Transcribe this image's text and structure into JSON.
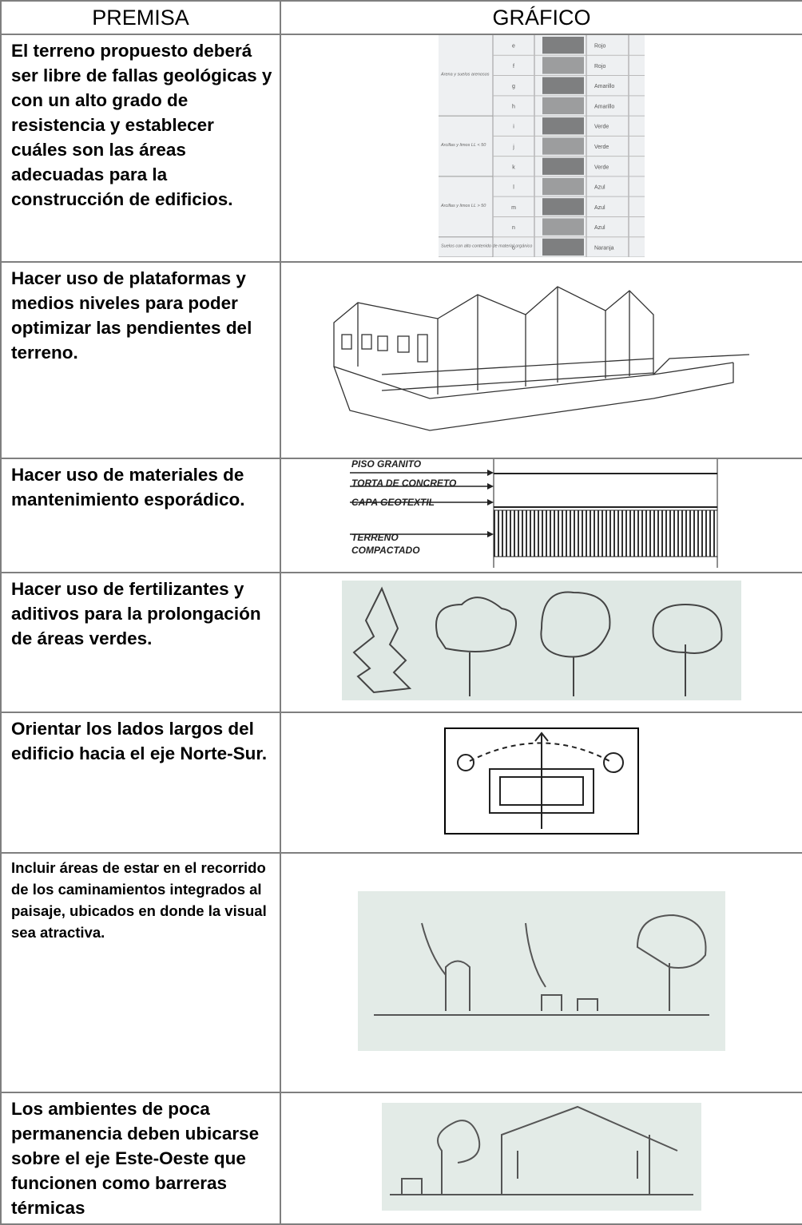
{
  "header": {
    "premisa": "PREMISA",
    "grafico": "GRÁFICO"
  },
  "rows": [
    {
      "premisa": "El terreno propuesto deberá ser libre de fallas geológicas y con un alto grado de resistencia y establecer cuáles son las áreas adecuadas para la construcción de edificios."
    },
    {
      "premisa": "Hacer uso de plataformas y medios niveles para poder optimizar las pendientes del terreno."
    },
    {
      "premisa": "Hacer uso de materiales de mantenimiento esporádico."
    },
    {
      "premisa": "Hacer uso de fertilizantes y aditivos para la prolongación de áreas verdes."
    },
    {
      "premisa": "Orientar los lados largos del edificio hacia el eje Norte-Sur."
    },
    {
      "premisa": "Incluir áreas de estar en el recorrido de los caminamientos integrados al paisaje, ubicados en donde la visual sea atractiva."
    },
    {
      "premisa": "Los ambientes de poca permanencia deben ubicarse sobre el eje Este-Oeste que funcionen como barreras térmicas"
    }
  ],
  "soil_table": {
    "groups": [
      "Arena y suelos arenosos",
      "Arcillas y limos LL < 50",
      "Arcillas y limos LL > 50",
      "Suelos con alto contenido de material orgánico"
    ],
    "letters": [
      "e",
      "f",
      "g",
      "h",
      "i",
      "j",
      "k",
      "l",
      "m",
      "n",
      "o"
    ],
    "colors": [
      "Rojo",
      "Rojo",
      "Amarillo",
      "Amarillo",
      "Verde",
      "Verde",
      "Verde",
      "Azul",
      "Azul",
      "Azul",
      "Naranja"
    ]
  },
  "layers": [
    "PISO GRANITO",
    "TORTA DE CONCRETO",
    "CAPA GEOTEXTIL",
    "TERRENO",
    "COMPACTADO"
  ]
}
